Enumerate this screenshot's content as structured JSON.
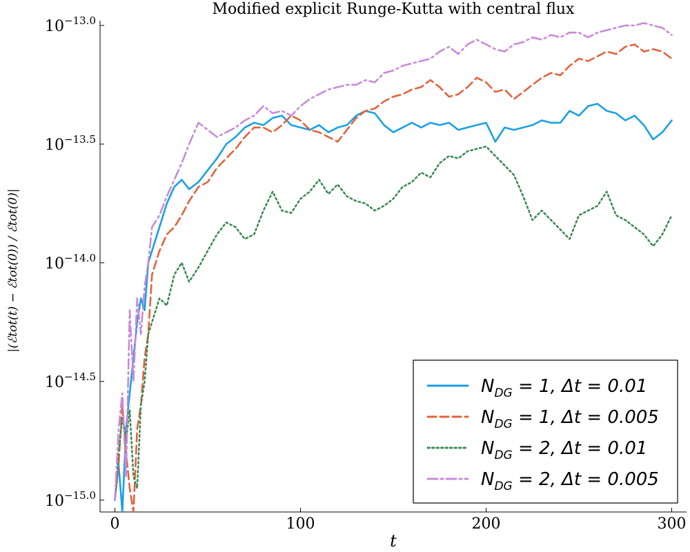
{
  "chart_data": {
    "type": "line",
    "title": "Modified explicit Runge-Kutta with central flux",
    "xlabel": "t",
    "ylabel": "|(ℰtot(t) − ℰtot(0)) / ℰtot(0)|",
    "xlim": [
      -8,
      308
    ],
    "ylim": [
      -15.05,
      -12.98
    ],
    "y_scale": "log10",
    "grid": false,
    "legend_position": "bottom-right",
    "x_ticks": [
      0,
      100,
      200,
      300
    ],
    "x_tick_labels": [
      "0",
      "100",
      "200",
      "300"
    ],
    "y_ticks": [
      -15.0,
      -14.5,
      -14.0,
      -13.5,
      -13.0
    ],
    "y_tick_bases": [
      "10",
      "10",
      "10",
      "10",
      "10"
    ],
    "y_tick_exponents": [
      "−15.0",
      "−14.5",
      "−14.0",
      "−13.5",
      "−13.0"
    ],
    "series": [
      {
        "name": "N_DG = 1, Δt = 0.01",
        "label_main": "N",
        "label_sub": "DG",
        "label_rest": " = 1, Δt = 0.01",
        "color": "#1aa0e3",
        "dash": "solid",
        "x": [
          0,
          2,
          4,
          6,
          8,
          10,
          12,
          14,
          16,
          18,
          20,
          24,
          28,
          32,
          36,
          40,
          45,
          50,
          55,
          60,
          65,
          70,
          75,
          80,
          85,
          90,
          95,
          100,
          105,
          110,
          115,
          120,
          125,
          130,
          135,
          140,
          145,
          150,
          155,
          160,
          165,
          170,
          175,
          180,
          185,
          190,
          195,
          200,
          205,
          210,
          215,
          220,
          225,
          230,
          235,
          240,
          245,
          250,
          255,
          260,
          265,
          270,
          275,
          280,
          285,
          290,
          295,
          300
        ],
        "y": [
          -15.0,
          -14.85,
          -15.05,
          -14.7,
          -14.55,
          -14.4,
          -14.25,
          -14.15,
          -14.2,
          -14.0,
          -13.95,
          -13.85,
          -13.75,
          -13.68,
          -13.65,
          -13.69,
          -13.66,
          -13.61,
          -13.56,
          -13.5,
          -13.47,
          -13.43,
          -13.41,
          -13.42,
          -13.39,
          -13.38,
          -13.42,
          -13.43,
          -13.44,
          -13.42,
          -13.45,
          -13.43,
          -13.42,
          -13.38,
          -13.36,
          -13.37,
          -13.42,
          -13.45,
          -13.43,
          -13.41,
          -13.43,
          -13.41,
          -13.42,
          -13.41,
          -13.44,
          -13.43,
          -13.42,
          -13.41,
          -13.49,
          -13.43,
          -13.44,
          -13.43,
          -13.42,
          -13.4,
          -13.41,
          -13.41,
          -13.36,
          -13.38,
          -13.34,
          -13.33,
          -13.36,
          -13.37,
          -13.4,
          -13.38,
          -13.42,
          -13.48,
          -13.45,
          -13.4
        ]
      },
      {
        "name": "N_DG = 1, Δt = 0.005",
        "label_main": "N",
        "label_sub": "DG",
        "label_rest": " = 1, Δt = 0.005",
        "color": "#e3613c",
        "dash": "dashed",
        "x": [
          0,
          2,
          4,
          6,
          8,
          10,
          12,
          14,
          16,
          18,
          20,
          24,
          28,
          32,
          36,
          40,
          45,
          50,
          55,
          60,
          65,
          70,
          75,
          80,
          85,
          90,
          95,
          100,
          105,
          110,
          115,
          120,
          125,
          130,
          135,
          140,
          145,
          150,
          155,
          160,
          165,
          170,
          175,
          180,
          185,
          190,
          195,
          200,
          205,
          210,
          215,
          220,
          225,
          230,
          235,
          240,
          245,
          250,
          255,
          260,
          265,
          270,
          275,
          280,
          285,
          290,
          295,
          300
        ],
        "y": [
          -15.0,
          -14.85,
          -14.6,
          -14.8,
          -14.95,
          -15.05,
          -14.7,
          -14.6,
          -14.4,
          -14.3,
          -14.05,
          -13.95,
          -13.88,
          -13.85,
          -13.8,
          -13.74,
          -13.68,
          -13.66,
          -13.6,
          -13.56,
          -13.52,
          -13.47,
          -13.43,
          -13.43,
          -13.45,
          -13.42,
          -13.38,
          -13.4,
          -13.44,
          -13.45,
          -13.47,
          -13.49,
          -13.44,
          -13.39,
          -13.36,
          -13.35,
          -13.32,
          -13.3,
          -13.29,
          -13.27,
          -13.26,
          -13.23,
          -13.26,
          -13.3,
          -13.29,
          -13.26,
          -13.22,
          -13.24,
          -13.28,
          -13.27,
          -13.31,
          -13.28,
          -13.25,
          -13.22,
          -13.2,
          -13.21,
          -13.17,
          -13.14,
          -13.15,
          -13.13,
          -13.11,
          -13.12,
          -13.09,
          -13.08,
          -13.11,
          -13.1,
          -13.11,
          -13.14
        ]
      },
      {
        "name": "N_DG = 2, Δt = 0.01",
        "label_main": "N",
        "label_sub": "DG",
        "label_rest": " = 2, Δt = 0.01",
        "color": "#3a8a52",
        "dash": "dotted",
        "x": [
          0,
          2,
          4,
          6,
          8,
          10,
          12,
          14,
          16,
          18,
          20,
          24,
          28,
          32,
          36,
          40,
          45,
          50,
          55,
          60,
          65,
          70,
          75,
          80,
          85,
          90,
          95,
          100,
          105,
          110,
          115,
          120,
          125,
          130,
          135,
          140,
          145,
          150,
          155,
          160,
          165,
          170,
          175,
          180,
          185,
          190,
          195,
          200,
          205,
          210,
          215,
          220,
          225,
          230,
          235,
          240,
          245,
          250,
          255,
          260,
          265,
          270,
          275,
          280,
          285,
          290,
          295,
          300
        ],
        "y": [
          -15.0,
          -14.8,
          -14.65,
          -14.75,
          -14.62,
          -14.9,
          -14.95,
          -14.6,
          -14.5,
          -14.3,
          -14.25,
          -14.15,
          -14.18,
          -14.05,
          -14.0,
          -14.08,
          -14.02,
          -13.95,
          -13.88,
          -13.83,
          -13.85,
          -13.9,
          -13.88,
          -13.78,
          -13.7,
          -13.78,
          -13.79,
          -13.73,
          -13.7,
          -13.65,
          -13.71,
          -13.67,
          -13.72,
          -13.74,
          -13.75,
          -13.78,
          -13.76,
          -13.73,
          -13.68,
          -13.66,
          -13.62,
          -13.64,
          -13.58,
          -13.55,
          -13.56,
          -13.53,
          -13.52,
          -13.51,
          -13.55,
          -13.59,
          -13.63,
          -13.72,
          -13.82,
          -13.78,
          -13.82,
          -13.86,
          -13.9,
          -13.8,
          -13.78,
          -13.76,
          -13.7,
          -13.8,
          -13.82,
          -13.85,
          -13.88,
          -13.93,
          -13.88,
          -13.8
        ]
      },
      {
        "name": "N_DG = 2, Δt = 0.005",
        "label_main": "N",
        "label_sub": "DG",
        "label_rest": " = 2, Δt = 0.005",
        "color": "#c98ad8",
        "dash": "dashdot",
        "x": [
          0,
          2,
          4,
          6,
          8,
          10,
          12,
          14,
          16,
          18,
          20,
          24,
          28,
          32,
          36,
          40,
          45,
          50,
          55,
          60,
          65,
          70,
          75,
          80,
          85,
          90,
          95,
          100,
          105,
          110,
          115,
          120,
          125,
          130,
          135,
          140,
          145,
          150,
          155,
          160,
          165,
          170,
          175,
          180,
          185,
          190,
          195,
          200,
          205,
          210,
          215,
          220,
          225,
          230,
          235,
          240,
          245,
          250,
          255,
          260,
          265,
          270,
          275,
          280,
          285,
          290,
          295,
          300
        ],
        "y": [
          -15.0,
          -14.7,
          -14.55,
          -14.9,
          -14.2,
          -14.5,
          -14.15,
          -14.3,
          -14.1,
          -14.0,
          -13.85,
          -13.8,
          -13.72,
          -13.65,
          -13.58,
          -13.5,
          -13.41,
          -13.44,
          -13.47,
          -13.45,
          -13.43,
          -13.4,
          -13.38,
          -13.34,
          -13.37,
          -13.36,
          -13.38,
          -13.34,
          -13.31,
          -13.29,
          -13.27,
          -13.26,
          -13.25,
          -13.25,
          -13.23,
          -13.24,
          -13.2,
          -13.19,
          -13.17,
          -13.16,
          -13.15,
          -13.14,
          -13.11,
          -13.09,
          -13.12,
          -13.08,
          -13.06,
          -13.08,
          -13.1,
          -13.11,
          -13.08,
          -13.07,
          -13.05,
          -13.06,
          -13.04,
          -13.05,
          -13.03,
          -13.03,
          -13.05,
          -13.03,
          -13.02,
          -13.01,
          -13.0,
          -13.0,
          -12.99,
          -13.0,
          -13.01,
          -13.04
        ]
      }
    ]
  }
}
